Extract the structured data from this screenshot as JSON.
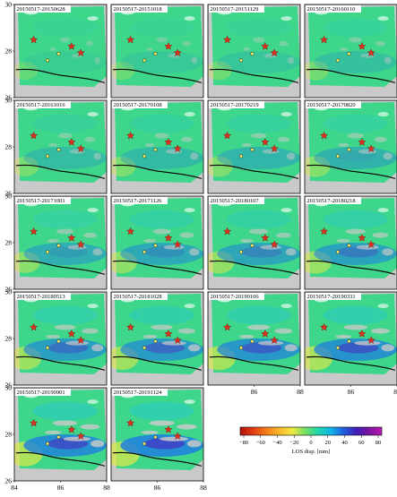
{
  "panels": [
    "20150517-20150628",
    "20150517-20151018",
    "20150517-20151129",
    "20150517-20160110",
    "20150517-20161016",
    "20150517-20170108",
    "20150517-20170219",
    "20150517-20170820",
    "20150517-20171001",
    "20150517-20171126",
    "20150517-20180107",
    "20150517-20180218",
    "20150517-20180513",
    "20150517-20181028",
    "20150517-20190106",
    "20150517-20190331",
    "20150517-20190901",
    "20150517-20191124"
  ],
  "y_ticks": [
    "30",
    "28",
    "26"
  ],
  "x_ticks_mid": [
    "86",
    "88"
  ],
  "x_ticks_bottom": [
    "84",
    "86",
    "88"
  ],
  "colorbar": {
    "ticks": [
      "−80",
      "−60",
      "−40",
      "−20",
      "0",
      "20",
      "40",
      "60",
      "80"
    ],
    "title": "LOS disp. [mm]",
    "colors": [
      "#b01010",
      "#e23a10",
      "#f57c1a",
      "#f7b52a",
      "#f2e640",
      "#7ce060",
      "#20d8a8",
      "#10b8e8",
      "#2060e0",
      "#4020b8",
      "#7a14a0",
      "#b81cb0"
    ]
  },
  "colors": {
    "frame": "#000000",
    "no_data": "#c9c9c9",
    "base_ramp": "#3dd68a",
    "star": "#e0301e"
  }
}
